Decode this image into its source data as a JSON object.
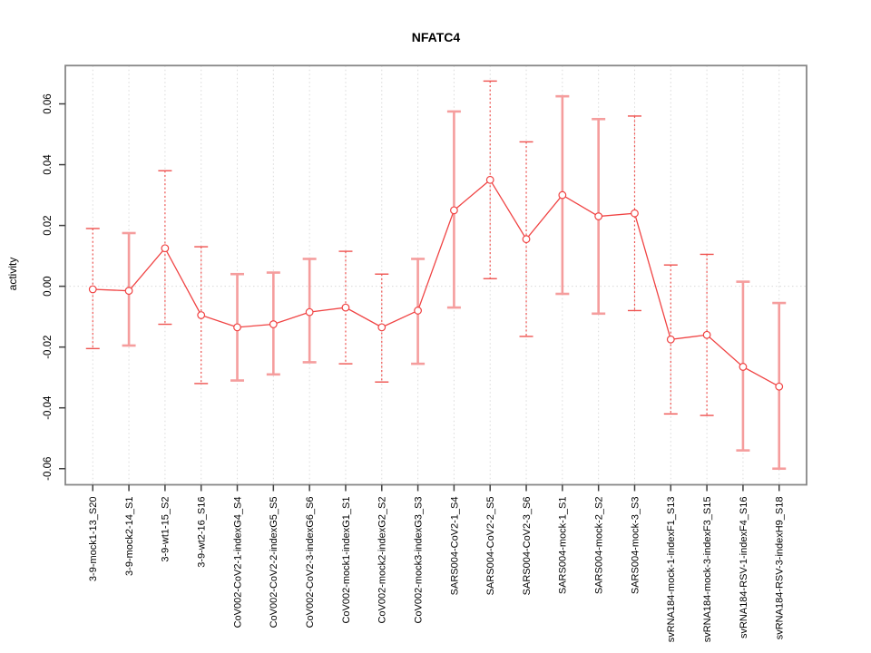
{
  "window": {
    "background": "#ffffff"
  },
  "chart_data": {
    "type": "line",
    "title": "NFATC4",
    "ylabel": "activity",
    "xlabel": "",
    "legend": "none",
    "grid": {
      "vertical": "dotted line at every category",
      "horizontal": "dotted line at y=0 only"
    },
    "marker": "open-circle",
    "ylim": [
      -0.0653,
      0.0726
    ],
    "yticks": [
      -0.06,
      -0.04,
      -0.02,
      0.0,
      0.02,
      0.04,
      0.06
    ],
    "ytick_labels": [
      "-0.06",
      "-0.04",
      "-0.02",
      "0.00",
      "0.02",
      "0.04",
      "0.06"
    ],
    "categories": [
      "3-9-mock1-13_S20",
      "3-9-mock2-14_S1",
      "3-9-wt1-15_S2",
      "3-9-wt2-16_S16",
      "CoV002-CoV2-1-indexG4_S4",
      "CoV002-CoV2-2-indexG5_S5",
      "CoV002-CoV2-3-indexG6_S6",
      "CoV002-mock1-indexG1_S1",
      "CoV002-mock2-indexG2_S2",
      "CoV002-mock3-indexG3_S3",
      "SARS004-CoV2-1_S4",
      "SARS004-CoV2-2_S5",
      "SARS004-CoV2-3_S6",
      "SARS004-mock-1_S1",
      "SARS004-mock-2_S2",
      "SARS004-mock-3_S3",
      "svRNA184-mock-1-indexF1_S13",
      "svRNA184-mock-3-indexF3_S15",
      "svRNA184-RSV-1-indexF4_S16",
      "svRNA184-RSV-3-indexH9_S18"
    ],
    "series": [
      {
        "name": "activity",
        "values": [
          -0.001,
          -0.0015,
          0.0125,
          -0.0095,
          -0.0135,
          -0.0125,
          -0.0085,
          -0.007,
          -0.0135,
          -0.008,
          0.025,
          0.035,
          0.0155,
          0.03,
          0.023,
          0.024,
          -0.0175,
          -0.016,
          -0.0265,
          -0.033
        ],
        "error_high": [
          0.019,
          0.0175,
          0.038,
          0.013,
          0.004,
          0.0045,
          0.009,
          0.0115,
          0.004,
          0.009,
          0.0575,
          0.0675,
          0.0475,
          0.0625,
          0.055,
          0.056,
          0.007,
          0.0105,
          0.0015,
          -0.0055
        ],
        "error_low": [
          -0.0205,
          -0.0195,
          -0.0125,
          -0.032,
          -0.031,
          -0.029,
          -0.025,
          -0.0255,
          -0.0315,
          -0.0255,
          -0.007,
          0.0025,
          -0.0165,
          -0.0025,
          -0.009,
          -0.008,
          -0.042,
          -0.0425,
          -0.054,
          -0.06
        ],
        "errorbar_line_styles": [
          "dashed",
          "solid",
          "dashed",
          "dashed",
          "solid",
          "solid",
          "solid",
          "dashed",
          "dashed",
          "solid",
          "solid",
          "dashed",
          "dashed",
          "solid",
          "solid",
          "dashed",
          "dashed",
          "dashed",
          "solid",
          "solid"
        ]
      }
    ],
    "colors": {
      "line": "#f04343",
      "point_stroke": "#f04343",
      "point_fill": "#ffffff",
      "errorbar_solid": "#f59d9d",
      "errorbar_dashed": "#ef5350",
      "grid": "#d9d9d9",
      "box": "#878787",
      "tick": "#404040",
      "text": "#000000"
    }
  }
}
